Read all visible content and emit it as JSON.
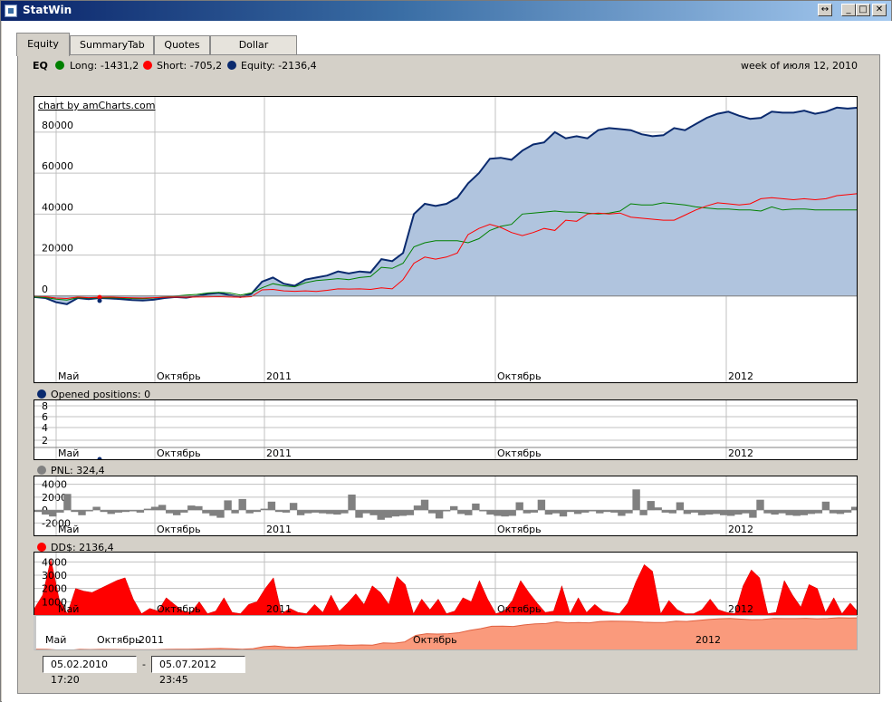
{
  "window": {
    "title": "StatWin",
    "buttons": {
      "restore": "↔",
      "minimize": "_",
      "maximize": "□",
      "close": "✕"
    }
  },
  "tabs": [
    {
      "label": "Equity",
      "active": true
    },
    {
      "label": "SummaryTab",
      "active": false
    },
    {
      "label": "Quotes",
      "active": false
    },
    {
      "label": "Dollar Volume",
      "active": false
    }
  ],
  "legend": {
    "eq": "EQ",
    "long": "Long: -1431,2",
    "short": "Short: -705,2",
    "equity": "Equity: -2136,4",
    "week": "week of июля 12, 2010",
    "colors": {
      "long": "#008000",
      "short": "#ff0000",
      "equity": "#0a2a6e"
    }
  },
  "credit": "chart by amCharts.com",
  "x_axis_labels": [
    "Май",
    "Октябрь",
    "2011",
    "Октябрь",
    "2012"
  ],
  "navigator_labels": [
    "Май",
    "Октябрь",
    "2011",
    "Октябрь",
    "2012"
  ],
  "opened_label": "Opened positions: 0",
  "pnl_label": "PNL: 324,4",
  "dd_label": "DD$: 2136,4",
  "date_range": {
    "from": "05.02.2010 17:20",
    "separator": "-",
    "to": "05.07.2012 23:45"
  },
  "chart_data": [
    {
      "type": "area",
      "panel": "equity",
      "y_ticks": [
        "80000",
        "60000",
        "40000",
        "20000",
        "0"
      ],
      "ylim": [
        -20000,
        95000
      ],
      "series": [
        {
          "name": "Equity",
          "color": "#0a2a6e",
          "fill": "#b0c4de",
          "values": [
            -500,
            -1000,
            -3000,
            -4000,
            -1000,
            -1500,
            -1000,
            -1200,
            -1500,
            -2000,
            -2200,
            -1800,
            -1000,
            -500,
            -800,
            0,
            1000,
            1500,
            500,
            -500,
            1000,
            7000,
            9000,
            6000,
            5000,
            8000,
            9000,
            10000,
            12000,
            11000,
            12000,
            11500,
            18000,
            17000,
            21000,
            40000,
            45000,
            44000,
            45000,
            48000,
            55000,
            60000,
            67000,
            67500,
            66500,
            71000,
            74000,
            75000,
            80000,
            77000,
            78000,
            77000,
            81000,
            82000,
            81500,
            81000,
            79000,
            78000,
            78500,
            82000,
            81000,
            84000,
            87000,
            89000,
            90000,
            88000,
            86500,
            87000,
            90000,
            89500,
            89500,
            90500,
            89000,
            90000,
            92000,
            91500,
            92000
          ]
        },
        {
          "name": "Long",
          "color": "#008000",
          "values": [
            -500,
            -700,
            -1500,
            -2000,
            -800,
            -1000,
            -900,
            -800,
            -1000,
            -1200,
            -1300,
            -1000,
            -500,
            0,
            500,
            800,
            1500,
            1800,
            1500,
            500,
            1500,
            4000,
            6000,
            5000,
            4500,
            6500,
            7500,
            8000,
            8500,
            8000,
            9000,
            9500,
            14000,
            13500,
            16000,
            24000,
            26000,
            27000,
            27000,
            27000,
            26000,
            28000,
            32000,
            34000,
            35000,
            40000,
            40500,
            41000,
            41500,
            41000,
            41000,
            40500,
            40000,
            40500,
            41500,
            45000,
            44500,
            44500,
            45500,
            45000,
            44500,
            43500,
            43000,
            42500,
            42500,
            42000,
            42000,
            41500,
            43500,
            42000,
            42500,
            42500,
            42000,
            42000,
            42000,
            42000,
            42000
          ]
        },
        {
          "name": "Short",
          "color": "#ff0000",
          "values": [
            0,
            -300,
            -1000,
            -1200,
            -500,
            -800,
            -600,
            -500,
            -700,
            -900,
            -1000,
            -800,
            -600,
            -500,
            -600,
            -500,
            -400,
            -300,
            -500,
            -600,
            -300,
            3000,
            3200,
            2500,
            2300,
            2500,
            2200,
            2800,
            3500,
            3400,
            3500,
            3200,
            4000,
            3500,
            8000,
            16000,
            19000,
            18000,
            19000,
            21000,
            30000,
            33000,
            35000,
            33500,
            31000,
            29500,
            31000,
            33000,
            32000,
            37000,
            36500,
            40000,
            40500,
            40000,
            40500,
            38500,
            38000,
            37500,
            37000,
            37000,
            39500,
            42000,
            44000,
            45500,
            45000,
            44500,
            45000,
            47500,
            48000,
            47500,
            47000,
            47500,
            47000,
            47500,
            49000,
            49500,
            50000
          ]
        }
      ]
    },
    {
      "type": "line",
      "panel": "opened_positions",
      "y_ticks": [
        "8",
        "6",
        "4",
        "2"
      ],
      "series": [
        {
          "name": "Opened positions",
          "color": "#0a2a6e",
          "values": [
            0
          ]
        }
      ]
    },
    {
      "type": "bar",
      "panel": "pnl",
      "y_ticks": [
        "4000",
        "2000",
        "0",
        "-2000"
      ],
      "ylim": [
        -3500,
        4500
      ],
      "series": [
        {
          "name": "PNL",
          "color": "#808080",
          "values": [
            -300,
            -700,
            -1000,
            -400,
            2500,
            -300,
            -800,
            -200,
            500,
            -300,
            -600,
            -400,
            -300,
            -200,
            -400,
            200,
            500,
            800,
            -500,
            -800,
            -400,
            700,
            600,
            -500,
            -900,
            -1200,
            1500,
            -500,
            1700,
            -500,
            -300,
            200,
            1300,
            -300,
            -400,
            1100,
            -800,
            -500,
            -400,
            -500,
            -600,
            -700,
            -500,
            2400,
            -1200,
            -500,
            -800,
            -1500,
            -1200,
            -1000,
            -900,
            -800,
            700,
            1600,
            -500,
            -1300,
            -200,
            600,
            -600,
            -800,
            1000,
            -200,
            -700,
            -900,
            -1000,
            -900,
            1200,
            -500,
            -400,
            1600,
            -700,
            -500,
            -1000,
            -300,
            -600,
            -400,
            -200,
            -500,
            -300,
            -400,
            -900,
            -500,
            3200,
            -800,
            1400,
            400,
            -400,
            -500,
            1200,
            -600,
            -400,
            -800,
            -700,
            -600,
            -800,
            -900,
            -700,
            -500,
            -1200,
            1600,
            -500,
            -700,
            -500,
            -800,
            -900,
            -800,
            -600,
            -500,
            1300,
            -500,
            -600,
            -400,
            500
          ]
        }
      ]
    },
    {
      "type": "area",
      "panel": "drawdown",
      "y_ticks": [
        "4000",
        "3000",
        "2000",
        "1000"
      ],
      "ylim": [
        0,
        4500
      ],
      "series": [
        {
          "name": "DD$",
          "color": "#ff0000",
          "values": [
            500,
            1500,
            4200,
            1200,
            100,
            2000,
            1800,
            1700,
            2000,
            2300,
            2600,
            2800,
            1200,
            100,
            500,
            300,
            1300,
            800,
            300,
            200,
            1000,
            100,
            300,
            1300,
            200,
            100,
            800,
            1000,
            2000,
            2800,
            100,
            500,
            200,
            100,
            800,
            200,
            1500,
            300,
            900,
            1600,
            800,
            2200,
            1700,
            800,
            2900,
            2300,
            100,
            1200,
            400,
            1200,
            100,
            300,
            1300,
            1000,
            2600,
            1200,
            100,
            300,
            1100,
            2600,
            1700,
            900,
            200,
            300,
            2200,
            100,
            1300,
            200,
            800,
            300,
            200,
            100,
            900,
            2500,
            3800,
            3300,
            100,
            1100,
            400,
            100,
            100,
            400,
            1200,
            400,
            200,
            100,
            2200,
            3400,
            2800,
            100,
            200,
            2600,
            1500,
            600,
            2300,
            2000,
            200,
            1300,
            100,
            900,
            200
          ]
        }
      ]
    },
    {
      "type": "area",
      "panel": "navigator",
      "series": [
        {
          "name": "Equity",
          "color": "#e06040",
          "fill": "#fa9a7c",
          "values": [
            -500,
            -1000,
            -3000,
            -4000,
            -1000,
            -1500,
            -1000,
            -1200,
            -1500,
            -2000,
            -2200,
            -1800,
            -1000,
            -500,
            -800,
            0,
            1000,
            1500,
            500,
            -500,
            1000,
            7000,
            9000,
            6000,
            5000,
            8000,
            9000,
            10000,
            12000,
            11000,
            12000,
            11500,
            18000,
            17000,
            21000,
            40000,
            45000,
            44000,
            45000,
            48000,
            55000,
            60000,
            67000,
            67500,
            66500,
            71000,
            74000,
            75000,
            80000,
            77000,
            78000,
            77000,
            81000,
            82000,
            81500,
            81000,
            79000,
            78000,
            78500,
            82000,
            81000,
            84000,
            87000,
            89000,
            90000,
            88000,
            86500,
            87000,
            90000,
            89500,
            89500,
            90500,
            89000,
            90000,
            92000,
            91500,
            92000
          ]
        }
      ]
    }
  ]
}
